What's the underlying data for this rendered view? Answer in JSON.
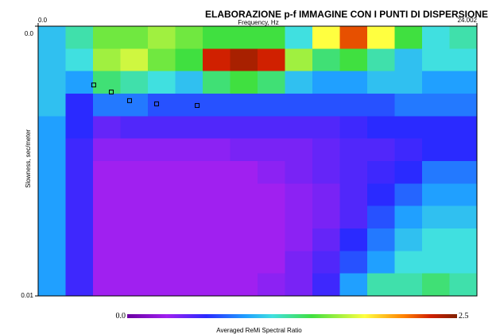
{
  "chart_data": {
    "type": "heatmap",
    "title": "ELABORAZIONE p-f IMMAGINE CON I PUNTI DI DISPERSIONE",
    "xlabel": "Frequency, Hz",
    "ylabel": "Slowness, sec/meter",
    "xlim": [
      0,
      24.002
    ],
    "xticks": [
      {
        "value": 0,
        "label": "0.0"
      },
      24.002
    ],
    "ylim": [
      0,
      0.01
    ],
    "yticks": [
      {
        "value": 0,
        "label": "0.0"
      },
      0.01
    ],
    "y_inverted": true,
    "z": [
      [
        1.0,
        1.2,
        1.5,
        1.5,
        1.6,
        1.5,
        1.4,
        1.4,
        1.4,
        1.1,
        1.8,
        2.2,
        1.8,
        1.4,
        1.1,
        1.2
      ],
      [
        1.0,
        1.1,
        1.6,
        1.7,
        1.5,
        1.4,
        2.3,
        2.4,
        2.3,
        1.6,
        1.3,
        1.4,
        1.2,
        1.0,
        1.1,
        1.1
      ],
      [
        1.0,
        0.9,
        1.3,
        1.2,
        1.1,
        1.0,
        1.3,
        1.4,
        1.3,
        1.0,
        0.9,
        0.9,
        1.0,
        1.0,
        0.9,
        0.9
      ],
      [
        1.0,
        0.6,
        0.8,
        0.8,
        0.7,
        0.7,
        0.7,
        0.7,
        0.7,
        0.7,
        0.7,
        0.7,
        0.7,
        0.8,
        0.8,
        0.8
      ],
      [
        0.9,
        0.6,
        0.45,
        0.5,
        0.5,
        0.5,
        0.5,
        0.5,
        0.5,
        0.5,
        0.5,
        0.55,
        0.6,
        0.6,
        0.6,
        0.6
      ],
      [
        0.9,
        0.55,
        0.35,
        0.35,
        0.35,
        0.35,
        0.35,
        0.4,
        0.4,
        0.4,
        0.45,
        0.5,
        0.5,
        0.55,
        0.6,
        0.6
      ],
      [
        0.9,
        0.55,
        0.3,
        0.3,
        0.3,
        0.3,
        0.3,
        0.3,
        0.35,
        0.4,
        0.45,
        0.5,
        0.55,
        0.6,
        0.8,
        0.8
      ],
      [
        0.9,
        0.55,
        0.3,
        0.3,
        0.3,
        0.3,
        0.3,
        0.3,
        0.3,
        0.35,
        0.4,
        0.5,
        0.6,
        0.75,
        0.9,
        0.9
      ],
      [
        0.9,
        0.55,
        0.3,
        0.3,
        0.3,
        0.3,
        0.3,
        0.3,
        0.3,
        0.35,
        0.4,
        0.5,
        0.7,
        0.9,
        1.0,
        1.0
      ],
      [
        0.9,
        0.55,
        0.3,
        0.3,
        0.3,
        0.3,
        0.3,
        0.3,
        0.3,
        0.35,
        0.45,
        0.6,
        0.8,
        1.0,
        1.1,
        1.1
      ],
      [
        0.9,
        0.55,
        0.3,
        0.3,
        0.3,
        0.3,
        0.3,
        0.3,
        0.3,
        0.4,
        0.5,
        0.7,
        0.9,
        1.1,
        1.1,
        1.1
      ],
      [
        0.9,
        0.55,
        0.3,
        0.3,
        0.3,
        0.3,
        0.3,
        0.3,
        0.35,
        0.4,
        0.55,
        0.9,
        1.2,
        1.2,
        1.3,
        1.2
      ]
    ],
    "colorscale": [
      {
        "value": 0,
        "color": "#6a00a0"
      },
      {
        "value": 0.3,
        "color": "#a020f0"
      },
      {
        "value": 0.6,
        "color": "#2a2aff"
      },
      {
        "value": 0.9,
        "color": "#20a0ff"
      },
      {
        "value": 1.1,
        "color": "#40e0e0"
      },
      {
        "value": 1.4,
        "color": "#40e040"
      },
      {
        "value": 1.8,
        "color": "#ffff40"
      },
      {
        "value": 2.1,
        "color": "#ff8000"
      },
      {
        "value": 2.3,
        "color": "#d02000"
      },
      {
        "value": 2.5,
        "color": "#802000"
      }
    ],
    "clim": [
      0,
      2.5
    ],
    "cticks": [
      {
        "value": 0,
        "label": "0.0"
      },
      2.5
    ],
    "colorbar_label": "Averaged ReMi Spectral Ratio",
    "points": {
      "color": "#000000",
      "x": [
        3.04,
        4.0,
        5.0,
        6.48,
        8.7
      ],
      "y": [
        0.00218,
        0.00244,
        0.00276,
        0.00288,
        0.00294
      ]
    }
  }
}
